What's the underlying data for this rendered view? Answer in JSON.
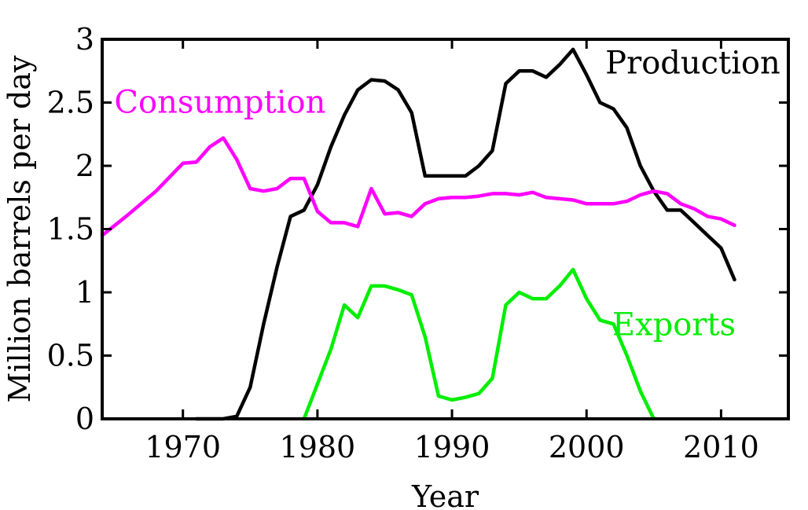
{
  "chart_data": {
    "type": "line",
    "xlabel": "Year",
    "ylabel": "Million barrels per day",
    "xlim": [
      1964,
      2015
    ],
    "ylim": [
      0,
      3
    ],
    "xticks": [
      1970,
      1980,
      1990,
      2000,
      2010
    ],
    "xtick_labels": [
      "1970",
      "1980",
      "1990",
      "2000",
      "2010"
    ],
    "yticks": [
      0,
      0.5,
      1,
      1.5,
      2,
      2.5,
      3
    ],
    "ytick_labels": [
      "0",
      "0.5",
      "1",
      "1.5",
      "2",
      "2.5",
      "3"
    ],
    "grid": false,
    "series": [
      {
        "name": "Production",
        "color": "#000000",
        "x": [
          1971,
          1973,
          1974,
          1975,
          1976,
          1977,
          1978,
          1979,
          1980,
          1981,
          1982,
          1983,
          1984,
          1985,
          1986,
          1987,
          1988,
          1989,
          1990,
          1991,
          1992,
          1993,
          1994,
          1995,
          1996,
          1997,
          1998,
          1999,
          2000,
          2001,
          2002,
          2003,
          2004,
          2005,
          2006,
          2007,
          2008,
          2009,
          2010,
          2011
        ],
        "y": [
          0.0,
          0.0,
          0.02,
          0.25,
          0.75,
          1.2,
          1.6,
          1.65,
          1.85,
          2.15,
          2.4,
          2.6,
          2.68,
          2.67,
          2.6,
          2.42,
          1.92,
          1.92,
          1.92,
          1.92,
          2.0,
          2.12,
          2.65,
          2.75,
          2.75,
          2.7,
          2.8,
          2.92,
          2.72,
          2.5,
          2.45,
          2.3,
          2.0,
          1.8,
          1.65,
          1.65,
          1.55,
          1.45,
          1.35,
          1.1
        ]
      },
      {
        "name": "Consumption",
        "color": "#ff00ff",
        "x": [
          1964,
          1966,
          1968,
          1970,
          1971,
          1972,
          1973,
          1974,
          1975,
          1976,
          1977,
          1978,
          1979,
          1980,
          1981,
          1982,
          1983,
          1984,
          1985,
          1986,
          1987,
          1988,
          1989,
          1990,
          1991,
          1992,
          1993,
          1994,
          1995,
          1996,
          1997,
          1998,
          1999,
          2000,
          2001,
          2002,
          2003,
          2004,
          2005,
          2006,
          2007,
          2008,
          2009,
          2010,
          2011
        ],
        "y": [
          1.45,
          1.62,
          1.8,
          2.02,
          2.03,
          2.15,
          2.22,
          2.05,
          1.82,
          1.8,
          1.82,
          1.9,
          1.9,
          1.64,
          1.55,
          1.55,
          1.52,
          1.82,
          1.62,
          1.63,
          1.6,
          1.7,
          1.74,
          1.75,
          1.75,
          1.76,
          1.78,
          1.78,
          1.77,
          1.79,
          1.75,
          1.74,
          1.73,
          1.7,
          1.7,
          1.7,
          1.72,
          1.77,
          1.8,
          1.78,
          1.7,
          1.66,
          1.6,
          1.58,
          1.53
        ]
      },
      {
        "name": "Exports",
        "color": "#00ee00",
        "x": [
          1979,
          1981,
          1982,
          1983,
          1984,
          1985,
          1986,
          1987,
          1988,
          1989,
          1990,
          1991,
          1992,
          1993,
          1994,
          1995,
          1996,
          1997,
          1998,
          1999,
          2000,
          2001,
          2002,
          2003,
          2004,
          2005
        ],
        "y": [
          0.0,
          0.55,
          0.9,
          0.8,
          1.05,
          1.05,
          1.02,
          0.98,
          0.65,
          0.18,
          0.15,
          0.17,
          0.2,
          0.32,
          0.9,
          1.0,
          0.95,
          0.95,
          1.05,
          1.18,
          0.95,
          0.78,
          0.75,
          0.5,
          0.22,
          0.0
        ]
      }
    ],
    "annotations": [
      {
        "text": "Production",
        "x": 2007.9,
        "y": 2.73,
        "color": "#000000",
        "anchor": "middle"
      },
      {
        "text": "Consumption",
        "x": 1964.9,
        "y": 2.42,
        "color": "#ff00ff",
        "anchor": "start"
      },
      {
        "text": "Exports",
        "x": 2006.5,
        "y": 0.66,
        "color": "#00ee00",
        "anchor": "middle"
      }
    ]
  }
}
